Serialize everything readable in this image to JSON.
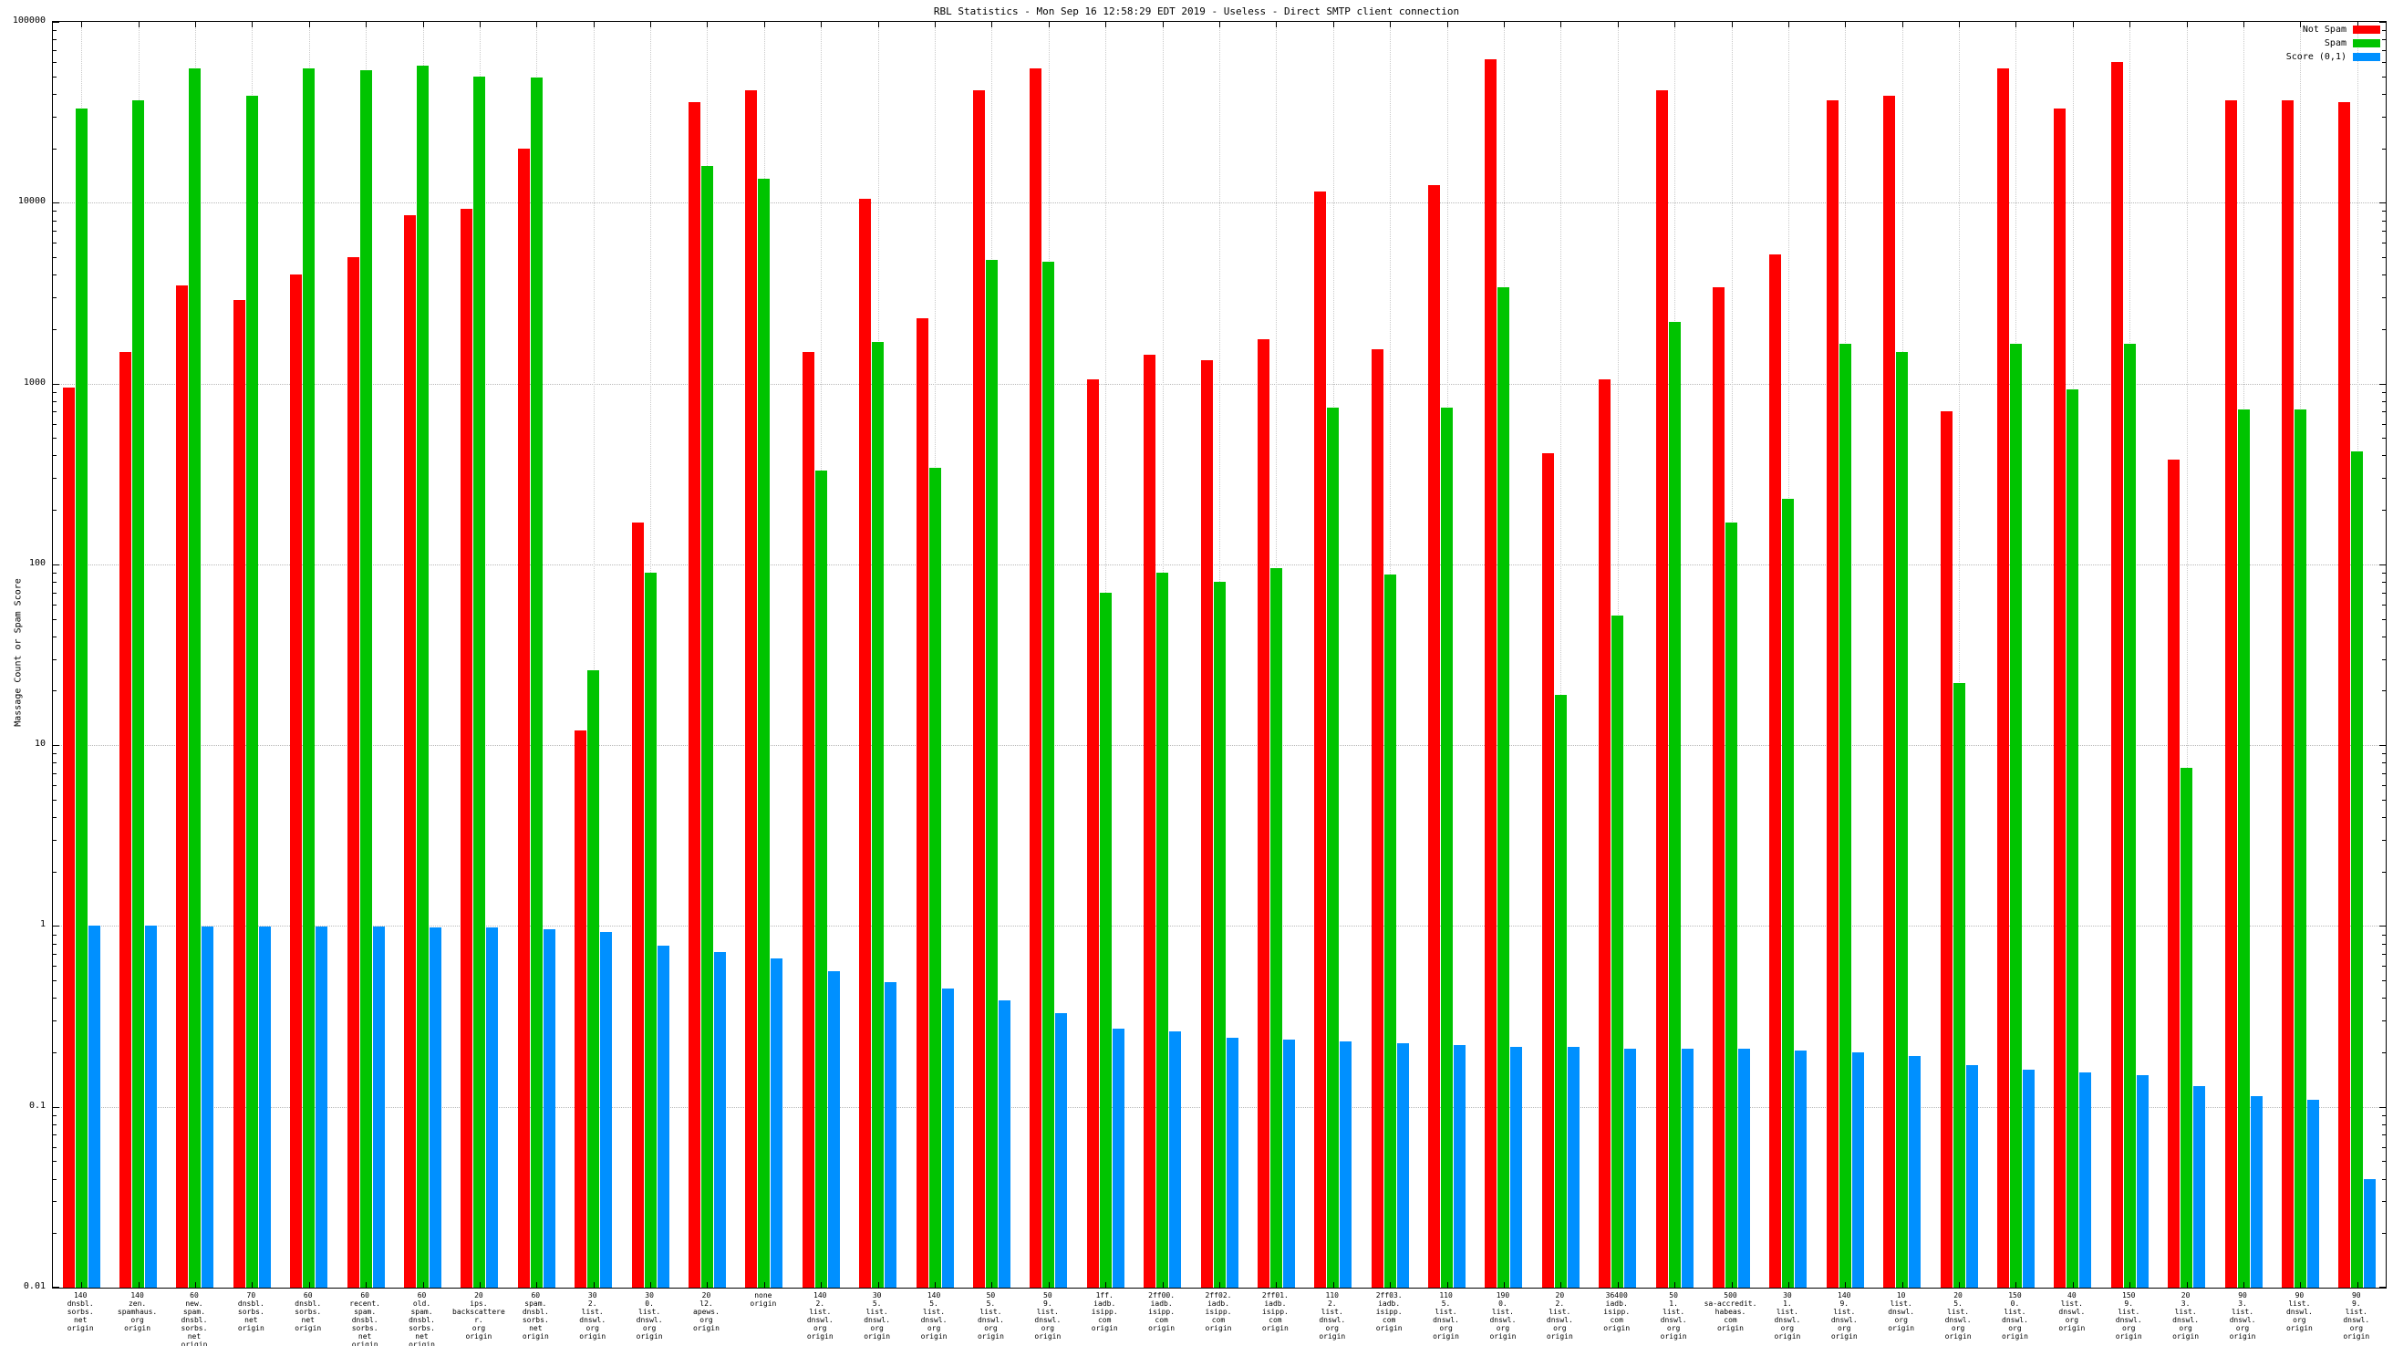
{
  "chart": {
    "title": "RBL Statistics - Mon Sep 16 12:58:29 EDT 2019 - Useless - Direct SMTP client connection",
    "ylabel": "Massage Count or Spam Score",
    "colors": {
      "not_spam": "#ff0000",
      "spam": "#00c400",
      "score": "#0090ff"
    },
    "legend": [
      {
        "label": "Not Spam",
        "key": "not_spam"
      },
      {
        "label": "Spam",
        "key": "spam"
      },
      {
        "label": "Score (0,1)",
        "key": "score"
      }
    ],
    "y_ticks": [
      "100000",
      "10000",
      "1000",
      "100",
      "10",
      "1",
      "0.1",
      "0.01"
    ]
  },
  "chart_data": {
    "type": "bar",
    "y_scale": "log",
    "ylim": [
      0.01,
      100000
    ],
    "grid": true,
    "legend_position": "top-right",
    "title": "RBL Statistics - Mon Sep 16 12:58:29 EDT 2019 - Useless - Direct SMTP client connection",
    "ylabel": "Massage Count or Spam Score",
    "series_names": [
      "Not Spam",
      "Spam",
      "Score (0,1)"
    ],
    "groups": [
      {
        "label": [
          "140",
          "dnsbl.",
          "sorbs.",
          "net",
          "origin"
        ],
        "not_spam": 950,
        "spam": 33000,
        "score": 1.0
      },
      {
        "label": [
          "140",
          "zen.",
          "spamhaus.",
          "org",
          "origin"
        ],
        "not_spam": 1500,
        "spam": 37000,
        "score": 1.0
      },
      {
        "label": [
          "60",
          "new.",
          "spam.",
          "dnsbl.",
          "sorbs.",
          "net",
          "origin"
        ],
        "not_spam": 3500,
        "spam": 55000,
        "score": 0.99
      },
      {
        "label": [
          "70",
          "dnsbl.",
          "sorbs.",
          "net",
          "origin"
        ],
        "not_spam": 2900,
        "spam": 39000,
        "score": 0.99
      },
      {
        "label": [
          "60",
          "dnsbl.",
          "sorbs.",
          "net",
          "origin"
        ],
        "not_spam": 4000,
        "spam": 55000,
        "score": 0.99
      },
      {
        "label": [
          "60",
          "recent.",
          "spam.",
          "dnsbl.",
          "sorbs.",
          "net",
          "origin"
        ],
        "not_spam": 5000,
        "spam": 54000,
        "score": 0.99
      },
      {
        "label": [
          "60",
          "old.",
          "spam.",
          "dnsbl.",
          "sorbs.",
          "net",
          "origin"
        ],
        "not_spam": 8500,
        "spam": 57000,
        "score": 0.98
      },
      {
        "label": [
          "20",
          "ips.",
          "backscatterer.",
          "org",
          "origin"
        ],
        "not_spam": 9200,
        "spam": 50000,
        "score": 0.98
      },
      {
        "label": [
          "60",
          "spam.",
          "dnsbl.",
          "sorbs.",
          "net",
          "origin"
        ],
        "not_spam": 20000,
        "spam": 49000,
        "score": 0.96
      },
      {
        "label": [
          "30",
          "2.",
          "list.",
          "dnswl.",
          "org",
          "origin"
        ],
        "not_spam": 12,
        "spam": 26,
        "score": 0.93
      },
      {
        "label": [
          "30",
          "0.",
          "list.",
          "dnswl.",
          "org",
          "origin"
        ],
        "not_spam": 170,
        "spam": 90,
        "score": 0.78
      },
      {
        "label": [
          "20",
          "l2.",
          "apews.",
          "org",
          "origin"
        ],
        "not_spam": 36000,
        "spam": 16000,
        "score": 0.72
      },
      {
        "label": [
          "none",
          "origin"
        ],
        "not_spam": 42000,
        "spam": 13500,
        "score": 0.66
      },
      {
        "label": [
          "140",
          "2.",
          "list.",
          "dnswl.",
          "org",
          "origin"
        ],
        "not_spam": 1500,
        "spam": 330,
        "score": 0.56
      },
      {
        "label": [
          "30",
          "5.",
          "list.",
          "dnswl.",
          "org",
          "origin"
        ],
        "not_spam": 10500,
        "spam": 1700,
        "score": 0.49
      },
      {
        "label": [
          "140",
          "5.",
          "list.",
          "dnswl.",
          "org",
          "origin"
        ],
        "not_spam": 2300,
        "spam": 340,
        "score": 0.45
      },
      {
        "label": [
          "50",
          "5.",
          "list.",
          "dnswl.",
          "org",
          "origin"
        ],
        "not_spam": 42000,
        "spam": 4800,
        "score": 0.39
      },
      {
        "label": [
          "50",
          "9.",
          "list.",
          "dnswl.",
          "org",
          "origin"
        ],
        "not_spam": 55000,
        "spam": 4700,
        "score": 0.33
      },
      {
        "label": [
          "1ff.",
          "iadb.",
          "isipp.",
          "com",
          "origin"
        ],
        "not_spam": 1050,
        "spam": 70,
        "score": 0.27
      },
      {
        "label": [
          "2ff00.",
          "iadb.",
          "isipp.",
          "com",
          "origin"
        ],
        "not_spam": 1450,
        "spam": 90,
        "score": 0.26
      },
      {
        "label": [
          "2ff02.",
          "iadb.",
          "isipp.",
          "com",
          "origin"
        ],
        "not_spam": 1350,
        "spam": 80,
        "score": 0.24
      },
      {
        "label": [
          "2ff01.",
          "iadb.",
          "isipp.",
          "com",
          "origin"
        ],
        "not_spam": 1750,
        "spam": 95,
        "score": 0.235
      },
      {
        "label": [
          "110",
          "2.",
          "list.",
          "dnswl.",
          "org",
          "origin"
        ],
        "not_spam": 11500,
        "spam": 740,
        "score": 0.23
      },
      {
        "label": [
          "2ff03.",
          "iadb.",
          "isipp.",
          "com",
          "origin"
        ],
        "not_spam": 1550,
        "spam": 88,
        "score": 0.225
      },
      {
        "label": [
          "110",
          "5.",
          "list.",
          "dnswl.",
          "org",
          "origin"
        ],
        "not_spam": 12500,
        "spam": 740,
        "score": 0.22
      },
      {
        "label": [
          "190",
          "0.",
          "list.",
          "dnswl.",
          "org",
          "origin"
        ],
        "not_spam": 62000,
        "spam": 3400,
        "score": 0.215
      },
      {
        "label": [
          "20",
          "2.",
          "list.",
          "dnswl.",
          "org",
          "origin"
        ],
        "not_spam": 410,
        "spam": 19,
        "score": 0.215
      },
      {
        "label": [
          "36400",
          "iadb.",
          "isipp.",
          "com",
          "origin"
        ],
        "not_spam": 1050,
        "spam": 52,
        "score": 0.21
      },
      {
        "label": [
          "50",
          "1.",
          "list.",
          "dnswl.",
          "org",
          "origin"
        ],
        "not_spam": 42000,
        "spam": 2200,
        "score": 0.21
      },
      {
        "label": [
          "500",
          "sa-accredit.",
          "habeas.",
          "com",
          "origin"
        ],
        "not_spam": 3400,
        "spam": 170,
        "score": 0.21
      },
      {
        "label": [
          "30",
          "1.",
          "list.",
          "dnswl.",
          "org",
          "origin"
        ],
        "not_spam": 5200,
        "spam": 230,
        "score": 0.205
      },
      {
        "label": [
          "140",
          "9.",
          "list.",
          "dnswl.",
          "org",
          "origin"
        ],
        "not_spam": 37000,
        "spam": 1650,
        "score": 0.2
      },
      {
        "label": [
          "10",
          "list.",
          "dnswl.",
          "org",
          "origin"
        ],
        "not_spam": 39000,
        "spam": 1500,
        "score": 0.19
      },
      {
        "label": [
          "20",
          "5.",
          "list.",
          "dnswl.",
          "org",
          "origin"
        ],
        "not_spam": 700,
        "spam": 22,
        "score": 0.17
      },
      {
        "label": [
          "150",
          "0.",
          "list.",
          "dnswl.",
          "org",
          "origin"
        ],
        "not_spam": 55000,
        "spam": 1650,
        "score": 0.16
      },
      {
        "label": [
          "40",
          "list.",
          "dnswl.",
          "org",
          "origin"
        ],
        "not_spam": 33000,
        "spam": 930,
        "score": 0.155
      },
      {
        "label": [
          "150",
          "9.",
          "list.",
          "dnswl.",
          "org",
          "origin"
        ],
        "not_spam": 60000,
        "spam": 1650,
        "score": 0.15
      },
      {
        "label": [
          "20",
          "3.",
          "list.",
          "dnswl.",
          "org",
          "origin"
        ],
        "not_spam": 380,
        "spam": 7.5,
        "score": 0.13
      },
      {
        "label": [
          "90",
          "3.",
          "list.",
          "dnswl.",
          "org",
          "origin"
        ],
        "not_spam": 37000,
        "spam": 720,
        "score": 0.115
      },
      {
        "label": [
          "90",
          "list.",
          "dnswl.",
          "org",
          "origin"
        ],
        "not_spam": 37000,
        "spam": 720,
        "score": 0.11
      },
      {
        "label": [
          "90",
          "9.",
          "list.",
          "dnswl.",
          "org",
          "origin"
        ],
        "not_spam": 36000,
        "spam": 420,
        "score": 0.04
      }
    ]
  }
}
